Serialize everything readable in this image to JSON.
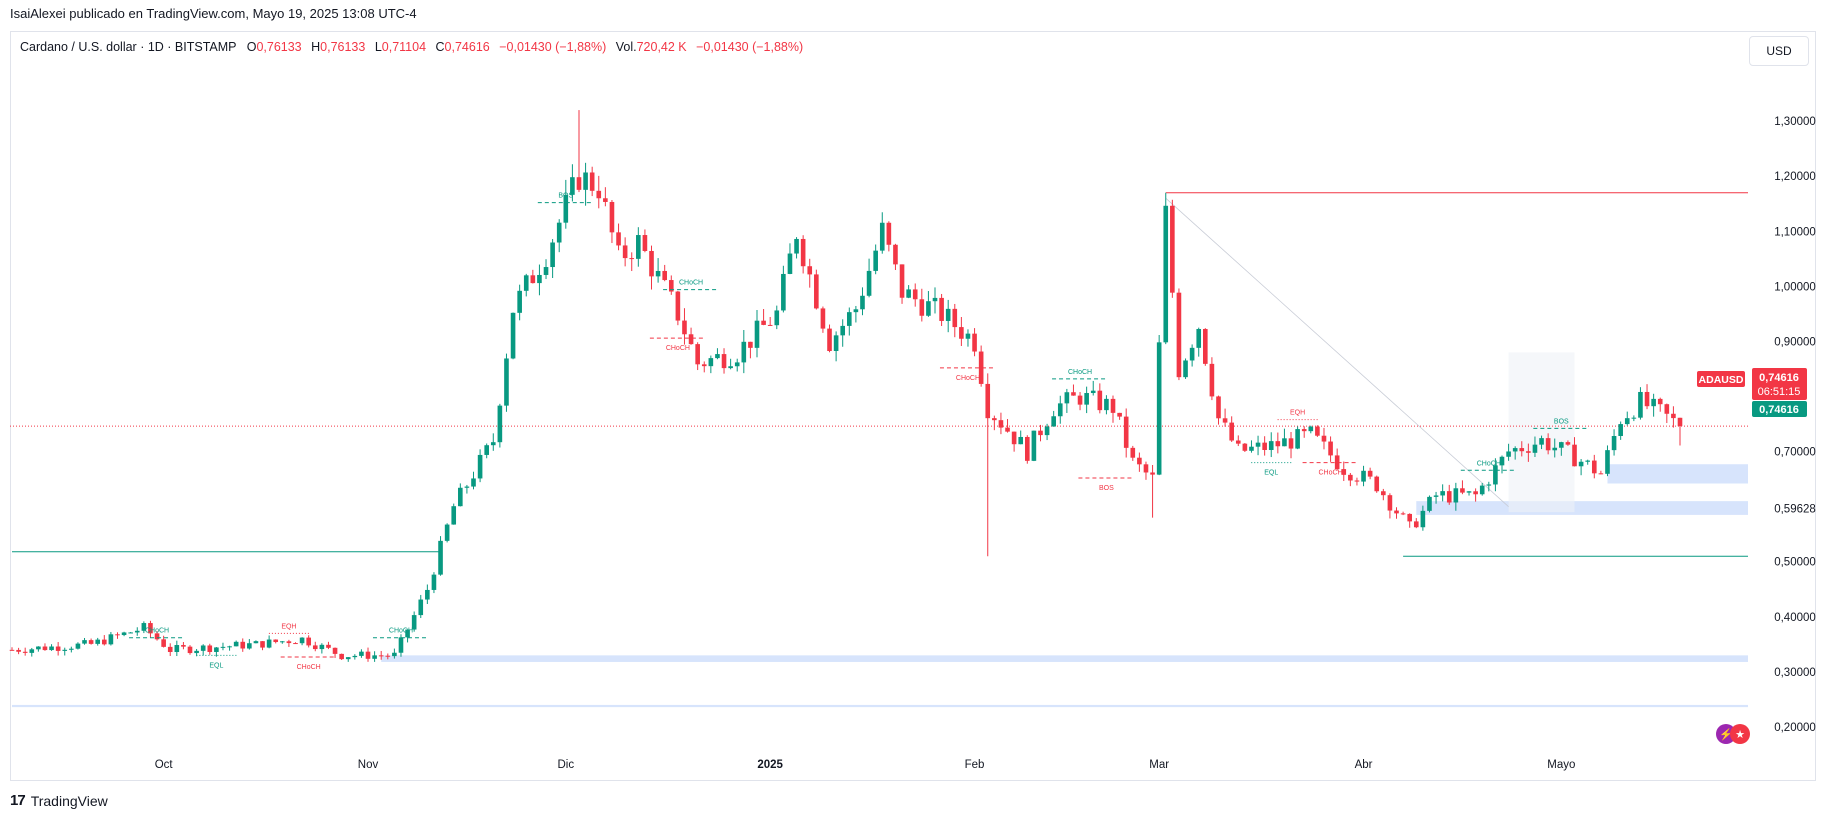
{
  "header": {
    "published": "IsaiAlexei publicado en TradingView.com, Mayo 19, 2025 13:08 UTC-4"
  },
  "legend": {
    "symbol": "Cardano / U.S. dollar · 1D · BITSTAMP",
    "o_label": "O",
    "o": "0,76133",
    "h_label": "H",
    "h": "0,76133",
    "l_label": "L",
    "l": "0,71104",
    "c_label": "C",
    "c": "0,74616",
    "change": "−0,01430 (−1,88%)",
    "vol_label": "Vol.",
    "vol": "720,42 K",
    "vol_change": "−0,01430 (−1,88%)"
  },
  "currency_button": "USD",
  "footer": {
    "brand": "TradingView"
  },
  "colors": {
    "up": "#089981",
    "down": "#f23645",
    "zone": "#c9dbfb",
    "grid": "#e0e3eb"
  },
  "chart_data": {
    "type": "candlestick",
    "symbol": "ADAUSD",
    "interval": "1D",
    "ylim": [
      0.14,
      1.42
    ],
    "y_ticks": [
      "1,30000",
      "1,20000",
      "1,10000",
      "1,00000",
      "0,90000",
      "0,70000",
      "0,59628",
      "0,50000",
      "0,40000",
      "0,30000",
      "0,20000"
    ],
    "y_tick_values": [
      1.3,
      1.2,
      1.1,
      1.0,
      0.9,
      0.7,
      0.59628,
      0.5,
      0.4,
      0.3,
      0.2
    ],
    "x_labels": [
      "Oct",
      "Nov",
      "Dic",
      "2025",
      "Feb",
      "Mar",
      "Abr",
      "Mayo"
    ],
    "x_label_dates": [
      "2024-10-01",
      "2024-11-01",
      "2024-12-01",
      "2025-01-01",
      "2025-02-01",
      "2025-03-01",
      "2025-04-01",
      "2025-05-01"
    ],
    "candle_dates": [
      "2024-09-08",
      "2025-05-19"
    ],
    "price_labels": {
      "symbol": "ADAUSD",
      "last": "0,74616",
      "countdown": "06:51:15",
      "close": "0,74616"
    },
    "last_price": 0.74616,
    "annotations": {
      "chochs": [
        {
          "text": "CHoCH",
          "date": "2024-09-30",
          "price": 0.362,
          "color": "up"
        },
        {
          "text": "CHoCH",
          "date": "2024-11-06",
          "price": 0.362,
          "color": "up"
        },
        {
          "text": "CHoCH",
          "date": "2024-10-23",
          "price": 0.327,
          "color": "down"
        },
        {
          "text": "CHoCH",
          "date": "2024-12-20",
          "price": 0.994,
          "color": "up"
        },
        {
          "text": "CHoCH",
          "date": "2024-12-18",
          "price": 0.906,
          "color": "down"
        },
        {
          "text": "CHoCH",
          "date": "2025-01-31",
          "price": 0.852,
          "color": "down"
        },
        {
          "text": "CHoCH",
          "date": "2025-02-17",
          "price": 0.832,
          "color": "up"
        },
        {
          "text": "CHoCH",
          "date": "2025-03-27",
          "price": 0.68,
          "color": "down"
        },
        {
          "text": "CHoCH",
          "date": "2025-04-20",
          "price": 0.666,
          "color": "up"
        }
      ],
      "bos": [
        {
          "text": "BOS",
          "date": "2024-12-01",
          "price": 1.152,
          "color": "up"
        },
        {
          "text": "BOS",
          "date": "2025-02-21",
          "price": 0.652,
          "color": "down"
        },
        {
          "text": "BOS",
          "date": "2025-05-01",
          "price": 0.742,
          "color": "up"
        }
      ],
      "eqh": [
        {
          "text": "EQH",
          "date": "2024-10-20",
          "price": 0.37,
          "color": "down"
        },
        {
          "text": "EQH",
          "date": "2025-03-22",
          "price": 0.758,
          "color": "down"
        }
      ],
      "eql": [
        {
          "text": "EQL",
          "date": "2024-10-09",
          "price": 0.33,
          "color": "up"
        },
        {
          "text": "EQL",
          "date": "2025-03-18",
          "price": 0.68,
          "color": "up"
        }
      ],
      "levels": [
        {
          "price": 1.17,
          "from": "2025-03-02",
          "color": "down"
        },
        {
          "price": 0.51,
          "from": "2025-04-07",
          "color": "up"
        },
        {
          "price": 0.518,
          "from": "2024-09-08",
          "to": "2024-11-12",
          "color": "up"
        }
      ],
      "zones": [
        {
          "top": 0.677,
          "bottom": 0.642,
          "from": "2025-05-08"
        },
        {
          "top": 0.61,
          "bottom": 0.585,
          "from": "2025-04-09"
        },
        {
          "top": 0.33,
          "bottom": 0.318,
          "from": "2024-11-03"
        },
        {
          "top": 0.24,
          "bottom": 0.236,
          "from": "2024-09-08"
        }
      ]
    },
    "candles": []
  }
}
